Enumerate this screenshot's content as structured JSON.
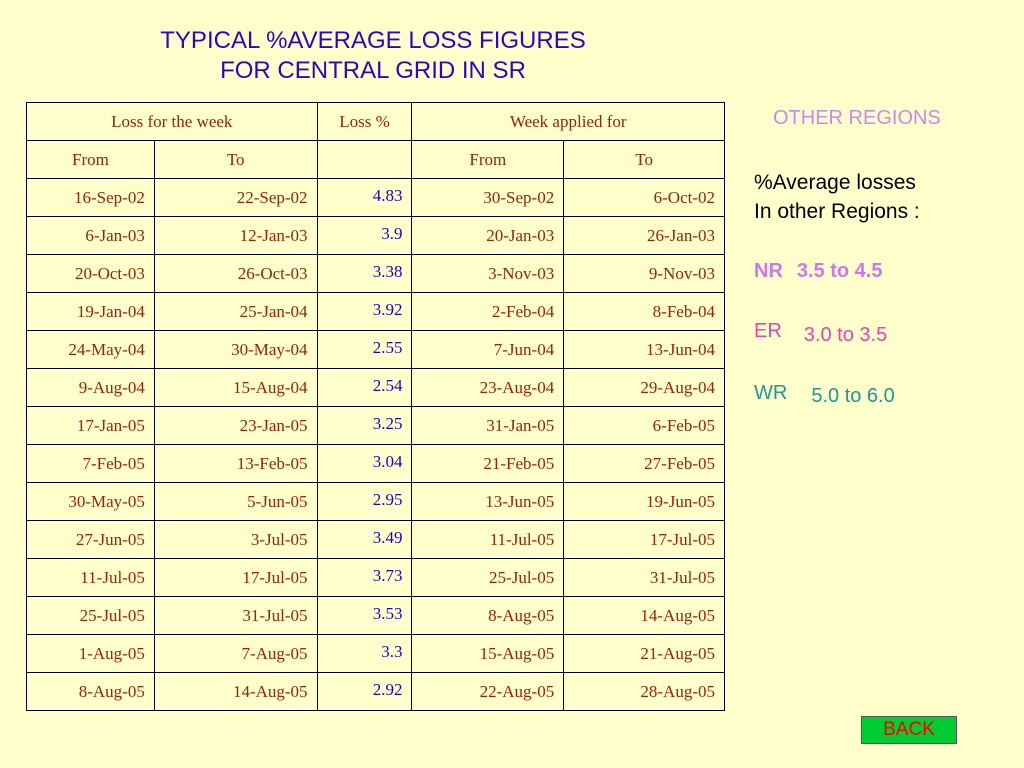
{
  "title": {
    "line1": "TYPICAL %AVERAGE LOSS FIGURES",
    "line2": "FOR CENTRAL GRID IN SR"
  },
  "table": {
    "header1": [
      "Loss for the week",
      "Loss %",
      "Week applied for"
    ],
    "header2": [
      "From",
      "To",
      "",
      "From",
      "To"
    ],
    "rows": [
      [
        "16-Sep-02",
        "22-Sep-02",
        "4.83",
        "30-Sep-02",
        "6-Oct-02"
      ],
      [
        "6-Jan-03",
        "12-Jan-03",
        "3.9",
        "20-Jan-03",
        "26-Jan-03"
      ],
      [
        "20-Oct-03",
        "26-Oct-03",
        "3.38",
        "3-Nov-03",
        "9-Nov-03"
      ],
      [
        "19-Jan-04",
        "25-Jan-04",
        "3.92",
        "2-Feb-04",
        "8-Feb-04"
      ],
      [
        "24-May-04",
        "30-May-04",
        "2.55",
        "7-Jun-04",
        "13-Jun-04"
      ],
      [
        "9-Aug-04",
        "15-Aug-04",
        "2.54",
        "23-Aug-04",
        "29-Aug-04"
      ],
      [
        "17-Jan-05",
        "23-Jan-05",
        "3.25",
        "31-Jan-05",
        "6-Feb-05"
      ],
      [
        "7-Feb-05",
        "13-Feb-05",
        "3.04",
        "21-Feb-05",
        "27-Feb-05"
      ],
      [
        "30-May-05",
        "5-Jun-05",
        "2.95",
        "13-Jun-05",
        "19-Jun-05"
      ],
      [
        "27-Jun-05",
        "3-Jul-05",
        "3.49",
        "11-Jul-05",
        "17-Jul-05"
      ],
      [
        "11-Jul-05",
        "17-Jul-05",
        "3.73",
        "25-Jul-05",
        "31-Jul-05"
      ],
      [
        "25-Jul-05",
        "31-Jul-05",
        "3.53",
        "8-Aug-05",
        "14-Aug-05"
      ],
      [
        "1-Aug-05",
        "7-Aug-05",
        "3.3",
        "15-Aug-05",
        "21-Aug-05"
      ],
      [
        "8-Aug-05",
        "14-Aug-05",
        "2.92",
        "22-Aug-05",
        "28-Aug-05"
      ]
    ]
  },
  "other_regions": {
    "title": "OTHER REGIONS",
    "avg_line1": "%Average losses",
    "avg_line2": "In other Regions :",
    "nr_label": "NR",
    "nr_value": "3.5 to 4.5",
    "er_label": "ER",
    "er_value": "3.0 to 3.5",
    "wr_label": "WR",
    "wr_value": "5.0 to 6.0"
  },
  "back_label": "BACK",
  "colors": {
    "background": "#FFFFCC",
    "title": "#3300CC",
    "cell_text": "#A0200A",
    "loss_pct": "#2200CC",
    "back_button": "#00CC33"
  }
}
